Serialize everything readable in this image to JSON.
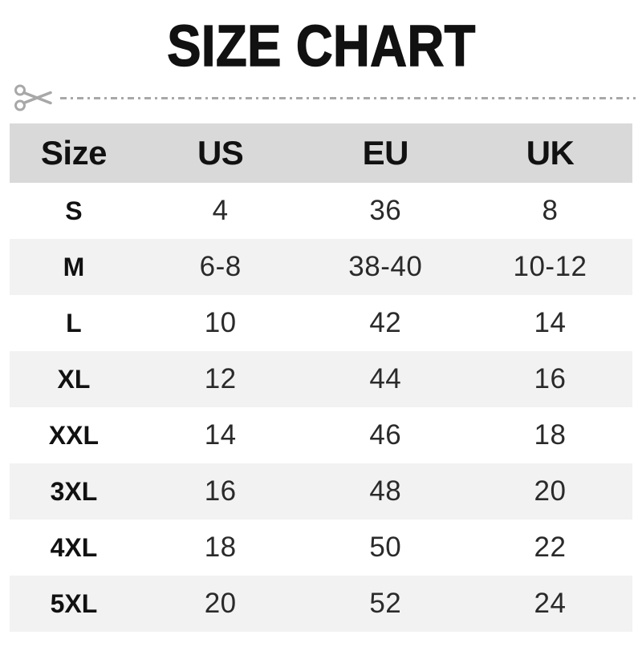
{
  "title": "SIZE CHART",
  "cut_line": {
    "icon": "scissors-icon"
  },
  "chart_data": {
    "type": "table",
    "title": "SIZE CHART",
    "columns": [
      "Size",
      "US",
      "EU",
      "UK"
    ],
    "rows": [
      [
        "S",
        "4",
        "36",
        "8"
      ],
      [
        "M",
        "6-8",
        "38-40",
        "10-12"
      ],
      [
        "L",
        "10",
        "42",
        "14"
      ],
      [
        "XL",
        "12",
        "44",
        "16"
      ],
      [
        "XXL",
        "14",
        "46",
        "18"
      ],
      [
        "3XL",
        "16",
        "48",
        "20"
      ],
      [
        "4XL",
        "18",
        "50",
        "22"
      ],
      [
        "5XL",
        "20",
        "52",
        "24"
      ]
    ]
  },
  "colors": {
    "header_bg": "#d9d9d9",
    "alt_row_bg": "#f2f2f2",
    "dash": "#a8a8a8",
    "text": "#111111"
  }
}
